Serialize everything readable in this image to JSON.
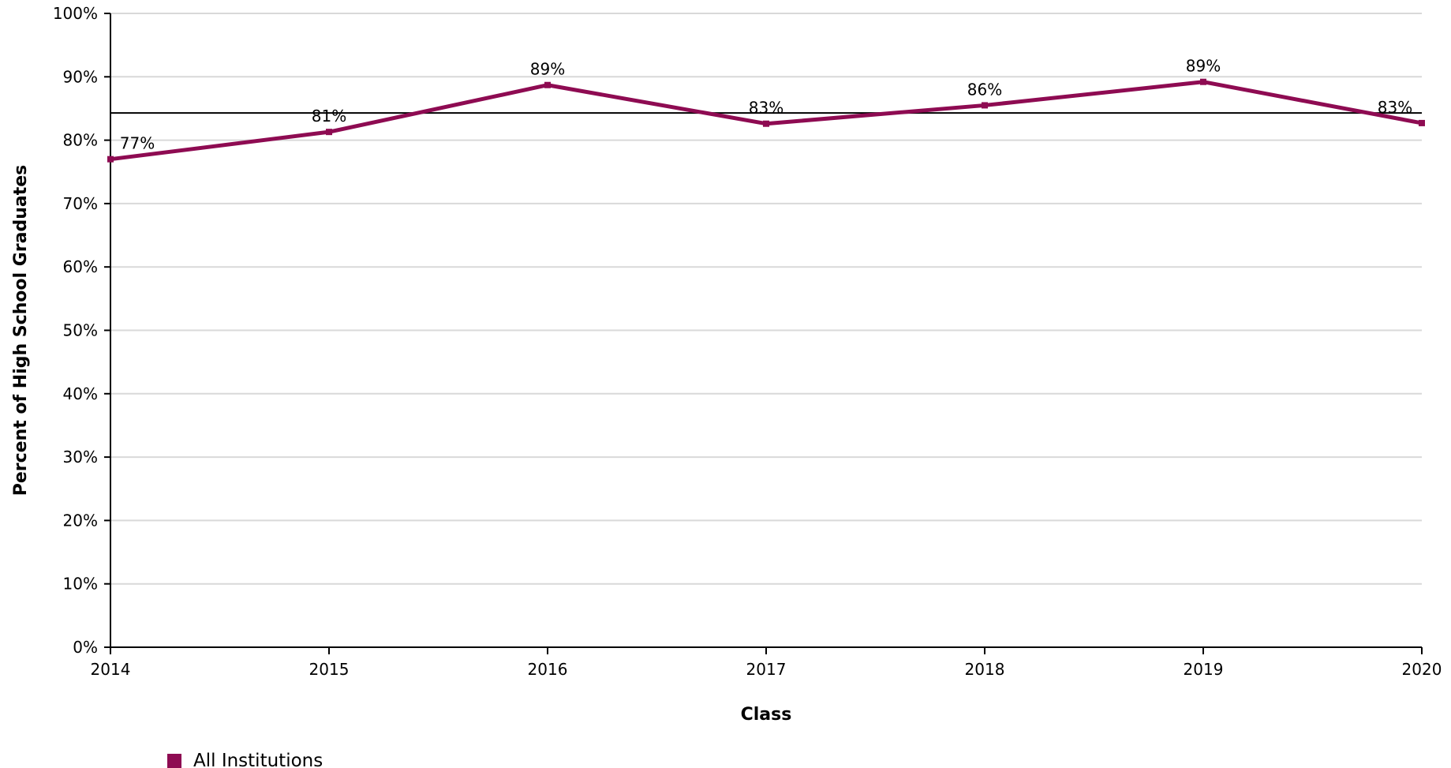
{
  "chart_data": {
    "type": "line",
    "categories": [
      "2014",
      "2015",
      "2016",
      "2017",
      "2018",
      "2019",
      "2020"
    ],
    "series": [
      {
        "name": "All Institutions",
        "values": [
          77.0,
          81.3,
          88.7,
          82.6,
          85.5,
          89.2,
          82.7
        ],
        "data_labels": [
          "77%",
          "81%",
          "89%",
          "83%",
          "86%",
          "89%",
          "83%"
        ],
        "color": "#8E0B52"
      }
    ],
    "reference_line": {
      "value": 84.3,
      "color": "#000000"
    },
    "xlabel": "Class",
    "ylabel": "Percent of High School Graduates",
    "ylim": [
      0,
      100
    ],
    "y_ticks": [
      0,
      10,
      20,
      30,
      40,
      50,
      60,
      70,
      80,
      90,
      100
    ],
    "y_tick_labels": [
      "0%",
      "10%",
      "20%",
      "30%",
      "40%",
      "50%",
      "60%",
      "70%",
      "80%",
      "90%",
      "100%"
    ],
    "grid": true,
    "legend": {
      "position": "bottom-left",
      "entries": [
        "All Institutions"
      ]
    }
  }
}
